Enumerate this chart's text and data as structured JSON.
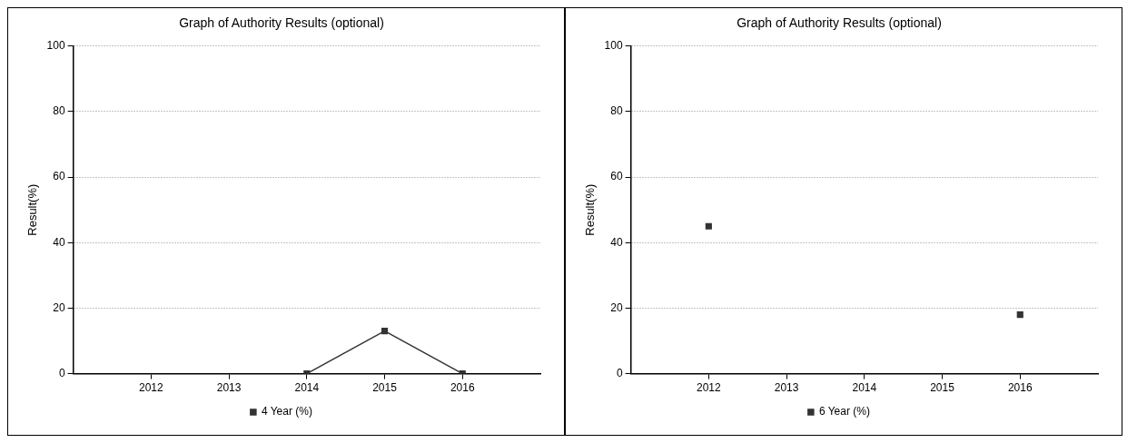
{
  "chart_data": [
    {
      "type": "line",
      "title": "Graph of Authority Results (optional)",
      "ylabel": "Result(%)",
      "categories": [
        "2012",
        "2013",
        "2014",
        "2015",
        "2016"
      ],
      "ylim": [
        0,
        100
      ],
      "yticks": [
        0,
        20,
        40,
        60,
        80,
        100
      ],
      "grid": "y",
      "legend": "bottom",
      "marker": "square",
      "line_style": "solid",
      "series": [
        {
          "name": "4 Year (%)",
          "color": "#333333",
          "values": [
            null,
            null,
            0,
            13,
            0
          ]
        }
      ]
    },
    {
      "type": "scatter",
      "title": "Graph of Authority Results (optional)",
      "ylabel": "Result(%)",
      "categories": [
        "2012",
        "2013",
        "2014",
        "2015",
        "2016"
      ],
      "ylim": [
        0,
        100
      ],
      "yticks": [
        0,
        20,
        40,
        60,
        80,
        100
      ],
      "grid": "y",
      "legend": "bottom",
      "marker": "square",
      "series": [
        {
          "name": "6 Year (%)",
          "color": "#333333",
          "values": [
            45,
            null,
            null,
            null,
            18
          ]
        }
      ]
    }
  ]
}
